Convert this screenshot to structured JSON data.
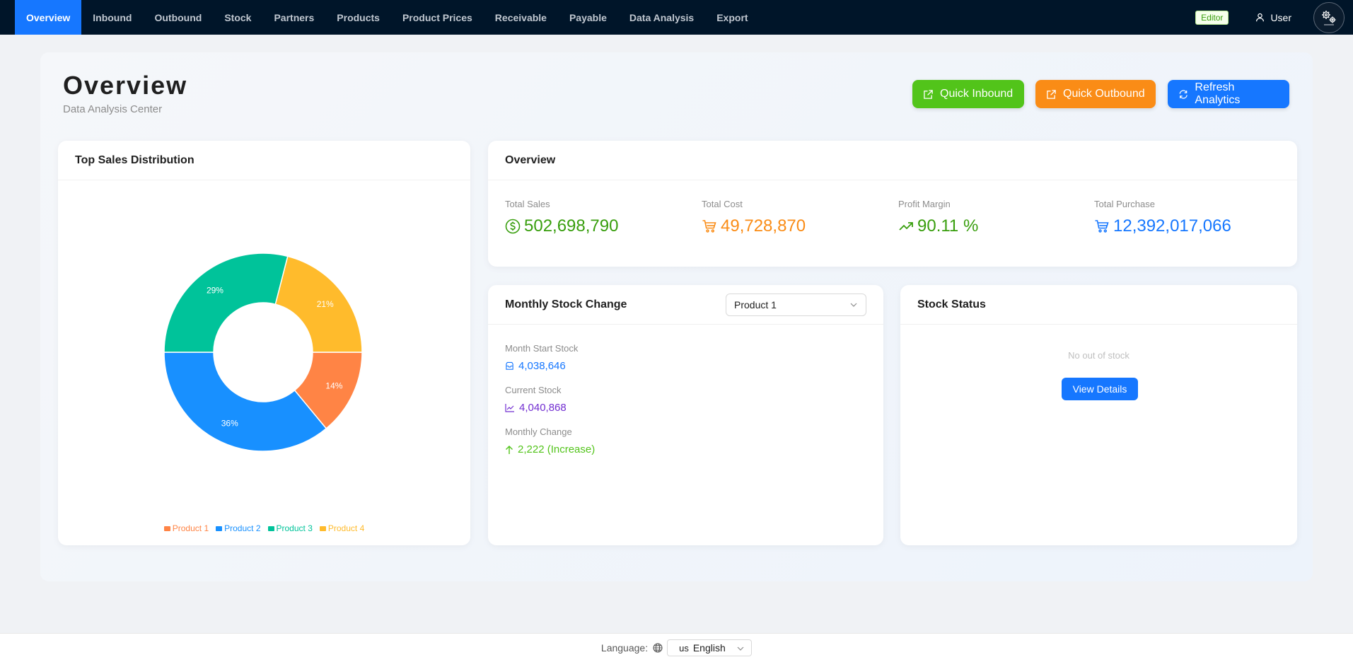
{
  "nav": {
    "items": [
      {
        "label": "Overview",
        "active": true
      },
      {
        "label": "Inbound"
      },
      {
        "label": "Outbound"
      },
      {
        "label": "Stock"
      },
      {
        "label": "Partners"
      },
      {
        "label": "Products"
      },
      {
        "label": "Product Prices"
      },
      {
        "label": "Receivable"
      },
      {
        "label": "Payable"
      },
      {
        "label": "Data Analysis"
      },
      {
        "label": "Export"
      }
    ],
    "role_badge": "Editor",
    "user_label": "User",
    "logo_icon": "gears-logo-icon"
  },
  "header": {
    "title": "Overview",
    "subtitle": "Data Analysis Center",
    "quick_inbound": "Quick Inbound",
    "quick_outbound": "Quick Outbound",
    "refresh": "Refresh Analytics"
  },
  "pie_card": {
    "title": "Top Sales Distribution"
  },
  "chart_data": {
    "type": "pie",
    "donut": true,
    "categories": [
      "Product 1",
      "Product 2",
      "Product 3",
      "Product 4"
    ],
    "values": [
      14,
      36,
      29,
      21
    ],
    "labels": [
      "14%",
      "36%",
      "29%",
      "21%"
    ],
    "colors": [
      "#ff8445",
      "#1890ff",
      "#00c39a",
      "#ffbb2c"
    ],
    "legend_position": "bottom"
  },
  "overview_card": {
    "title": "Overview",
    "stats": [
      {
        "label": "Total Sales",
        "value": "502,698,790",
        "icon": "dollar-circle-icon",
        "color": "#389e0d"
      },
      {
        "label": "Total Cost",
        "value": "49,728,870",
        "icon": "cart-icon",
        "color": "#fa8c16"
      },
      {
        "label": "Profit Margin",
        "value": "90.11 %",
        "icon": "rise-icon",
        "color": "#389e0d"
      },
      {
        "label": "Total Purchase",
        "value": "12,392,017,066",
        "icon": "cart-icon",
        "color": "#1677ff"
      }
    ]
  },
  "monthly_card": {
    "title": "Monthly Stock Change",
    "product_select": "Product 1",
    "start_label": "Month Start Stock",
    "start_value": "4,038,646",
    "current_label": "Current Stock",
    "current_value": "4,040,868",
    "change_label": "Monthly Change",
    "change_value": "2,222 (Increase)",
    "colors": {
      "start": "#1677ff",
      "current": "#722ed1",
      "change": "#52c41a"
    }
  },
  "status_card": {
    "title": "Stock Status",
    "empty_text": "No out of stock",
    "view_details": "View Details"
  },
  "footer": {
    "language_label": "Language:",
    "language_flag": "us",
    "language_value": "English"
  }
}
